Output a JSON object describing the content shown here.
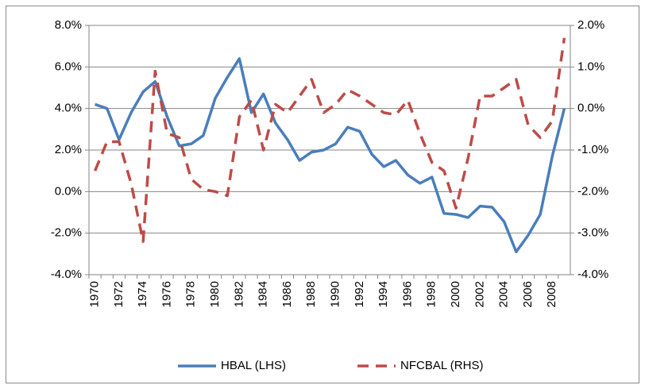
{
  "chart_data": {
    "type": "line",
    "categories": [
      "1970",
      null,
      "1972",
      null,
      "1974",
      null,
      "1976",
      null,
      "1978",
      null,
      "1980",
      null,
      "1982",
      null,
      "1984",
      null,
      "1986",
      null,
      "1988",
      null,
      "1990",
      null,
      "1992",
      null,
      "1994",
      null,
      "1996",
      null,
      "1998",
      null,
      "2000",
      null,
      "2002",
      null,
      "2004",
      null,
      "2006",
      null,
      "2008",
      null
    ],
    "series": [
      {
        "name": "HBAL (LHS)",
        "color": "#4a7ebb",
        "line_style": "solid",
        "values": [
          4.2,
          4.0,
          2.5,
          3.8,
          4.8,
          5.3,
          3.6,
          2.2,
          2.3,
          2.7,
          4.5,
          5.5,
          6.4,
          3.8,
          4.7,
          3.3,
          2.5,
          1.5,
          1.9,
          2.0,
          2.3,
          3.1,
          2.9,
          1.8,
          1.2,
          1.5,
          0.8,
          0.4,
          0.7,
          -1.05,
          -1.1,
          -1.25,
          -0.7,
          -0.75,
          -1.45,
          -2.9,
          -2.1,
          -1.1,
          1.7,
          4.0
        ]
      },
      {
        "name": "NFCBAL (RHS)",
        "color": "#be4b48",
        "line_style": "dashed",
        "axis": "y2",
        "values": [
          -1.5,
          -0.8,
          -0.8,
          -1.8,
          -3.2,
          0.9,
          -0.6,
          -0.7,
          -1.7,
          -1.95,
          -2.0,
          -2.1,
          -0.2,
          0.2,
          -1.0,
          0.1,
          -0.1,
          0.3,
          0.7,
          -0.1,
          0.1,
          0.45,
          0.3,
          0.1,
          -0.1,
          -0.15,
          0.2,
          -0.6,
          -1.3,
          -1.5,
          -2.4,
          -1.2,
          0.3,
          0.3,
          0.5,
          0.7,
          -0.4,
          -0.7,
          -0.3,
          1.7
        ]
      }
    ],
    "ylim": [
      -4,
      8
    ],
    "yticks": [
      {
        "value": -4,
        "label": "-4.0%"
      },
      {
        "value": -2,
        "label": "-2.0%"
      },
      {
        "value": 0,
        "label": "0.0%"
      },
      {
        "value": 2,
        "label": "2.0%"
      },
      {
        "value": 4,
        "label": "4.0%"
      },
      {
        "value": 6,
        "label": "6.0%"
      },
      {
        "value": 8,
        "label": "8.0%"
      }
    ],
    "y2lim": [
      -4,
      2
    ],
    "y2ticks": [
      {
        "value": -4,
        "label": "-4.0%"
      },
      {
        "value": -3,
        "label": "-3.0%"
      },
      {
        "value": -2,
        "label": "-2.0%"
      },
      {
        "value": -1,
        "label": "-1.0%"
      },
      {
        "value": 0,
        "label": "0.0%"
      },
      {
        "value": 1,
        "label": "1.0%"
      },
      {
        "value": 2,
        "label": "2.0%"
      }
    ],
    "grid": true,
    "legend": "bottom"
  }
}
